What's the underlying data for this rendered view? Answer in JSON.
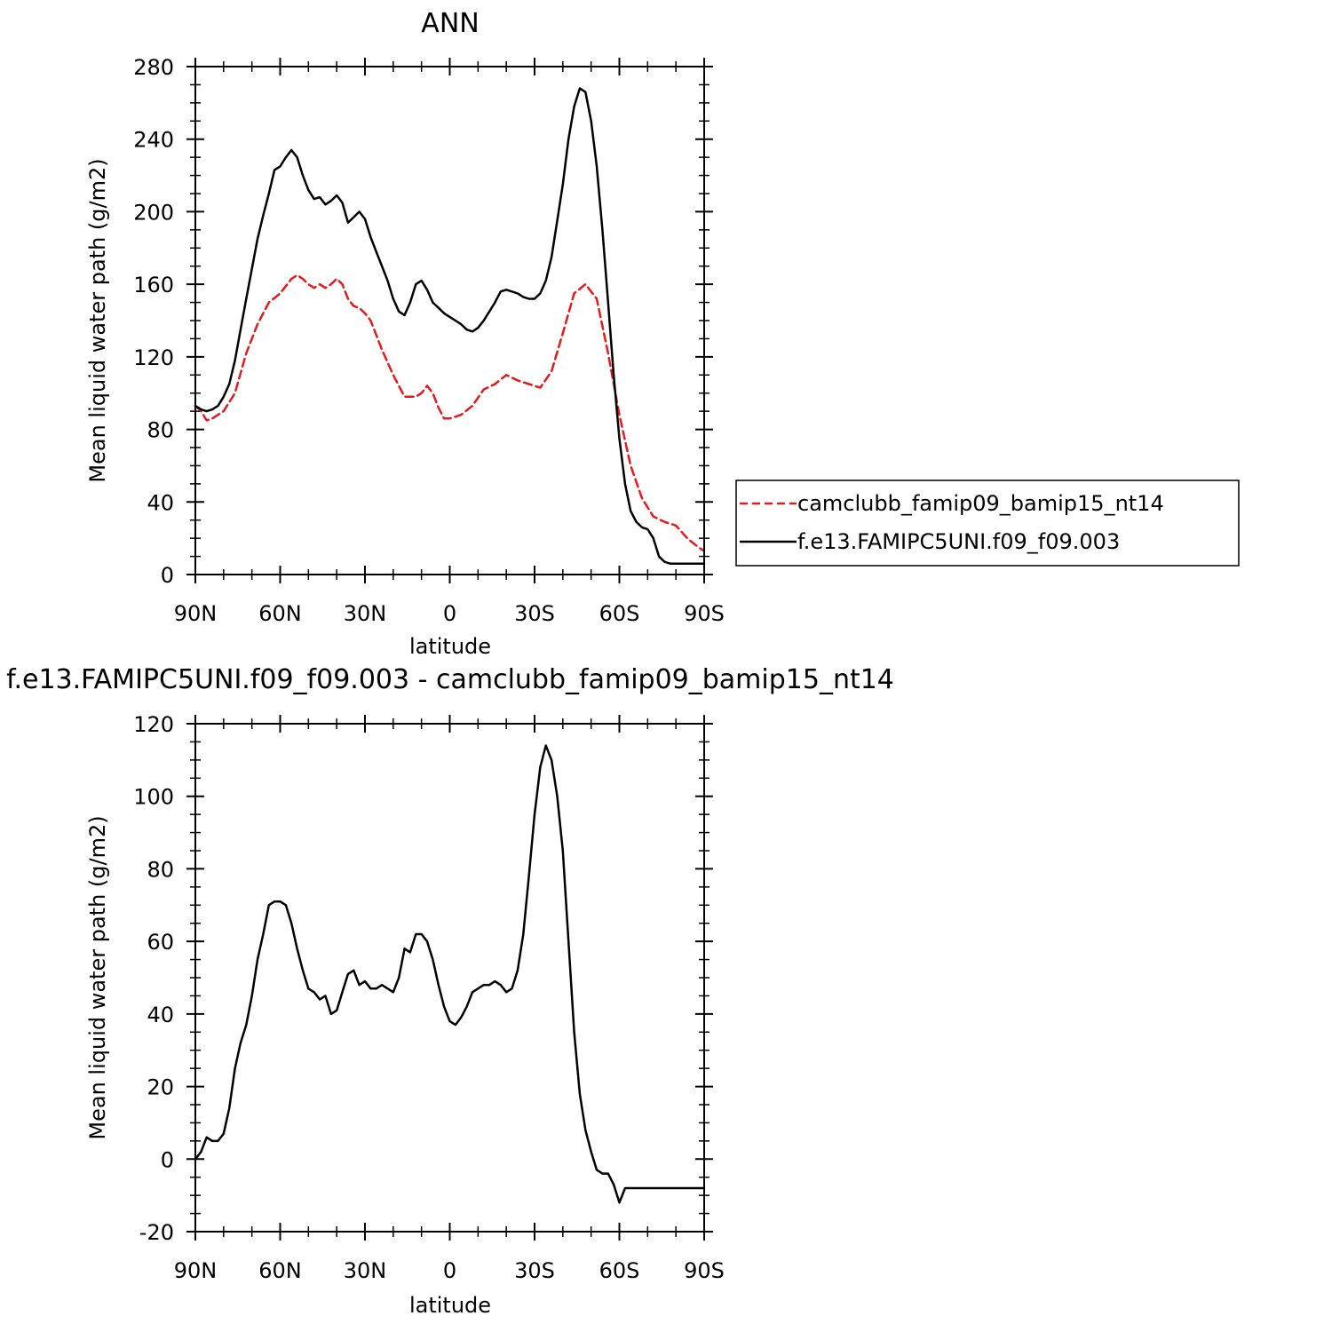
{
  "colors": {
    "series_1": "#e41a1c",
    "series_2": "#000000",
    "background": "#ffffff"
  },
  "chart_data": [
    {
      "type": "line",
      "title": "ANN",
      "xlabel": "latitude",
      "ylabel": "Mean liquid water path (g/m2)",
      "xlim": [
        -90,
        90
      ],
      "ylim": [
        0,
        280
      ],
      "x_direction": "North to South",
      "xtick_labels": [
        "90N",
        "60N",
        "30N",
        "0",
        "30S",
        "60S",
        "90S"
      ],
      "ytick_labels": [
        "0",
        "40",
        "80",
        "120",
        "160",
        "200",
        "240",
        "280"
      ],
      "grid": false,
      "legend": "right, outside plot area",
      "series": [
        {
          "name": "camclubb_famip09_bamip15_nt14",
          "style": "dashed",
          "color": "#e41a1c",
          "x": [
            -90,
            -88,
            -86,
            -84,
            -80,
            -76,
            -72,
            -68,
            -64,
            -60,
            -58,
            -56,
            -54,
            -52,
            -50,
            -48,
            -46,
            -44,
            -42,
            -40,
            -38,
            -36,
            -34,
            -32,
            -30,
            -28,
            -24,
            -20,
            -16,
            -12,
            -10,
            -8,
            -6,
            -4,
            -2,
            0,
            4,
            8,
            12,
            16,
            20,
            24,
            28,
            32,
            36,
            40,
            44,
            48,
            52,
            56,
            60,
            64,
            68,
            72,
            76,
            80,
            84,
            88,
            90
          ],
          "y": [
            93,
            90,
            85,
            86,
            90,
            100,
            122,
            138,
            150,
            155,
            159,
            163,
            165,
            163,
            160,
            158,
            160,
            158,
            160,
            163,
            160,
            152,
            148,
            147,
            144,
            140,
            124,
            110,
            98,
            98,
            100,
            104,
            100,
            92,
            86,
            86,
            88,
            93,
            102,
            105,
            110,
            107,
            105,
            103,
            112,
            133,
            155,
            160,
            152,
            122,
            88,
            60,
            42,
            32,
            29,
            27,
            20,
            15,
            13
          ]
        },
        {
          "name": "f.e13.FAMIPC5UNI.f09_f09.003",
          "style": "solid",
          "color": "#000000",
          "x": [
            -90,
            -88,
            -86,
            -84,
            -82,
            -80,
            -78,
            -76,
            -74,
            -72,
            -68,
            -66,
            -64,
            -62,
            -60,
            -58,
            -56,
            -54,
            -52,
            -50,
            -48,
            -46,
            -44,
            -42,
            -40,
            -38,
            -36,
            -34,
            -32,
            -30,
            -28,
            -26,
            -24,
            -22,
            -20,
            -18,
            -16,
            -14,
            -12,
            -10,
            -8,
            -6,
            -4,
            -2,
            0,
            2,
            4,
            6,
            8,
            10,
            12,
            14,
            16,
            18,
            20,
            22,
            24,
            26,
            28,
            30,
            32,
            34,
            36,
            38,
            40,
            42,
            44,
            46,
            48,
            50,
            52,
            54,
            56,
            58,
            60,
            62,
            64,
            66,
            68,
            70,
            72,
            74,
            76,
            78,
            80,
            82,
            84,
            86,
            88,
            90
          ],
          "y": [
            93,
            91,
            90,
            91,
            93,
            98,
            105,
            118,
            135,
            152,
            185,
            198,
            210,
            223,
            225,
            230,
            234,
            230,
            220,
            212,
            207,
            208,
            204,
            206,
            209,
            205,
            194,
            197,
            200,
            196,
            186,
            178,
            170,
            162,
            152,
            145,
            143,
            150,
            160,
            162,
            157,
            150,
            147,
            144,
            142,
            140,
            138,
            135,
            134,
            136,
            140,
            145,
            150,
            156,
            157,
            156,
            155,
            153,
            152,
            152,
            155,
            162,
            175,
            195,
            215,
            240,
            258,
            268,
            266,
            250,
            225,
            190,
            150,
            110,
            75,
            50,
            35,
            29,
            26,
            25,
            20,
            10,
            7,
            6,
            6,
            6,
            6,
            6,
            6,
            6
          ]
        }
      ]
    },
    {
      "type": "line",
      "title": "f.e13.FAMIPC5UNI.f09_f09.003 - camclubb_famip09_bamip15_nt14",
      "xlabel": "latitude",
      "ylabel": "Mean liquid water path (g/m2)",
      "xlim": [
        -90,
        90
      ],
      "ylim": [
        -20,
        120
      ],
      "x_direction": "North to South",
      "xtick_labels": [
        "90N",
        "60N",
        "30N",
        "0",
        "30S",
        "60S",
        "90S"
      ],
      "ytick_labels": [
        "-20",
        "0",
        "20",
        "40",
        "60",
        "80",
        "100",
        "120"
      ],
      "grid": false,
      "series": [
        {
          "style": "solid",
          "color": "#000000",
          "x": [
            -90,
            -88,
            -86,
            -84,
            -82,
            -80,
            -78,
            -76,
            -74,
            -72,
            -70,
            -68,
            -66,
            -64,
            -62,
            -60,
            -58,
            -56,
            -54,
            -52,
            -50,
            -48,
            -46,
            -44,
            -42,
            -40,
            -38,
            -36,
            -34,
            -32,
            -30,
            -28,
            -26,
            -24,
            -22,
            -20,
            -18,
            -16,
            -14,
            -12,
            -10,
            -8,
            -6,
            -4,
            -2,
            0,
            2,
            4,
            6,
            8,
            10,
            12,
            14,
            16,
            18,
            20,
            22,
            24,
            26,
            28,
            30,
            32,
            34,
            36,
            38,
            40,
            42,
            44,
            46,
            48,
            50,
            52,
            54,
            56,
            58,
            60,
            62,
            64,
            66,
            68,
            70,
            72,
            74,
            76,
            78,
            80,
            82,
            84,
            86,
            88,
            90
          ],
          "y": [
            0,
            2,
            6,
            5,
            5,
            7,
            14,
            25,
            32,
            37,
            45,
            55,
            62,
            70,
            71,
            71,
            70,
            65,
            58,
            52,
            47,
            46,
            44,
            45,
            40,
            41,
            46,
            51,
            52,
            48,
            49,
            47,
            47,
            48,
            47,
            46,
            50,
            58,
            57,
            62,
            62,
            60,
            55,
            48,
            42,
            38,
            37,
            39,
            42,
            46,
            47,
            48,
            48,
            49,
            48,
            46,
            47,
            52,
            62,
            78,
            95,
            108,
            114,
            110,
            100,
            85,
            60,
            35,
            18,
            8,
            2,
            -3,
            -4,
            -4,
            -7,
            -12,
            -8,
            -8,
            -8,
            -8,
            -8,
            -8,
            -8,
            -8,
            -8,
            -8,
            -8,
            -8,
            -8,
            -8,
            -8
          ]
        }
      ]
    }
  ]
}
